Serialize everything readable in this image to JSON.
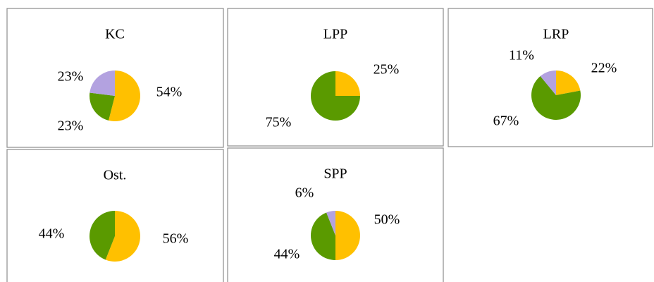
{
  "chart_data": [
    {
      "type": "pie",
      "title": "KC",
      "values": [
        54,
        23,
        23
      ],
      "value_labels": [
        "54%",
        "23%",
        "23%"
      ],
      "colors": [
        "#ffc000",
        "#5a9a00",
        "#b3a2e0"
      ]
    },
    {
      "type": "pie",
      "title": "LPP",
      "values": [
        25,
        75
      ],
      "value_labels": [
        "25%",
        "75%"
      ],
      "colors": [
        "#ffc000",
        "#5a9a00"
      ]
    },
    {
      "type": "pie",
      "title": "LRP",
      "values": [
        22,
        67,
        11
      ],
      "value_labels": [
        "22%",
        "67%",
        "11%"
      ],
      "colors": [
        "#ffc000",
        "#5a9a00",
        "#b3a2e0"
      ]
    },
    {
      "type": "pie",
      "title": "Ost.",
      "values": [
        56,
        44
      ],
      "value_labels": [
        "56%",
        "44%"
      ],
      "colors": [
        "#ffc000",
        "#5a9a00"
      ]
    },
    {
      "type": "pie",
      "title": "SPP",
      "values": [
        50,
        44,
        6
      ],
      "value_labels": [
        "50%",
        "44%",
        "6%"
      ],
      "colors": [
        "#ffc000",
        "#5a9a00",
        "#b3a2e0"
      ]
    }
  ]
}
